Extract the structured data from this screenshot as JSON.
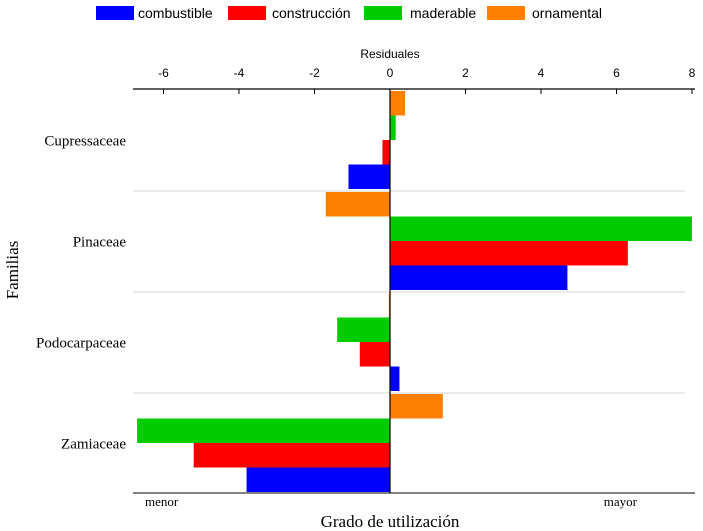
{
  "chart_data": {
    "type": "bar",
    "orientation": "horizontal",
    "axis_title_top": "Residuales",
    "xlabel": "Grado de utilización",
    "ylabel": "Familias",
    "x_low_label": "menor",
    "x_high_label": "mayor",
    "xlim": [
      -6.8,
      8.0
    ],
    "xticks": [
      -6,
      -4,
      -2,
      0,
      2,
      4,
      6,
      8
    ],
    "categories": [
      "Cupressaceae",
      "Pinaceae",
      "Podocarpaceae",
      "Zamiaceae"
    ],
    "series": [
      {
        "name": "combustible",
        "color": "#0000ff",
        "values": [
          -1.1,
          4.7,
          0.25,
          -3.8
        ]
      },
      {
        "name": "construcción",
        "color": "#ff0000",
        "values": [
          -0.2,
          6.3,
          -0.8,
          -5.2
        ]
      },
      {
        "name": "maderable",
        "color": "#00cc00",
        "values": [
          0.15,
          8.0,
          -1.4,
          -6.7
        ]
      },
      {
        "name": "ornamental",
        "color": "#ff8000",
        "values": [
          0.4,
          -1.7,
          -0.03,
          1.4
        ]
      }
    ],
    "grid": "horizontal separators between families",
    "legend_position": "top"
  }
}
